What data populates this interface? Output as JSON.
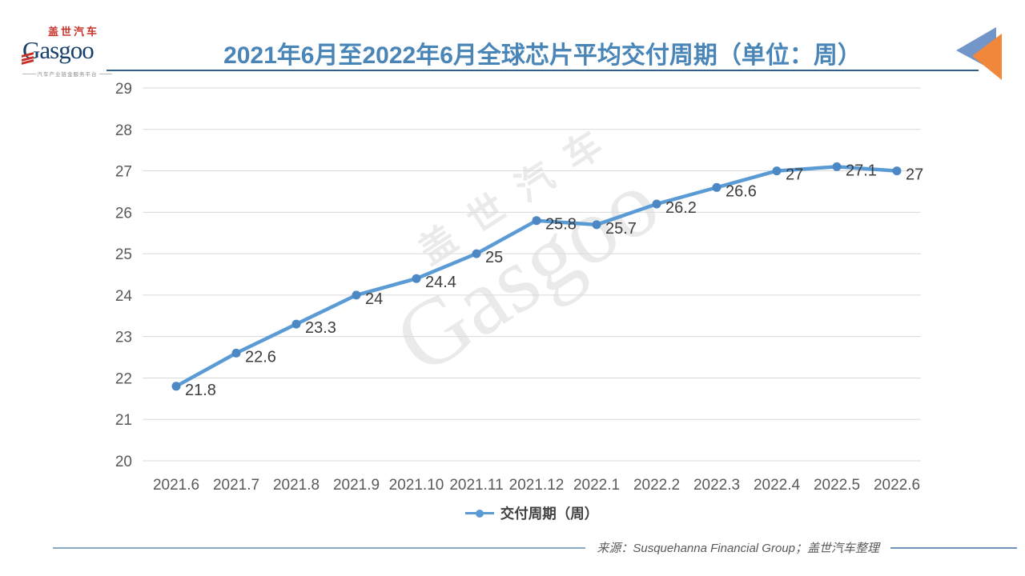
{
  "brand": {
    "logo_cn": "盖世汽车",
    "logo_en": "Gasgoo",
    "logo_tagline": "汽车产业链金服务平台",
    "watermark_cn": "盖世汽车",
    "watermark_en": "Gasgoo"
  },
  "header": {
    "title": "2021年6月至2022年6月全球芯片平均交付周期（单位：周）"
  },
  "legend": {
    "label": "交付周期（周）"
  },
  "footer": {
    "source": "来源：Susquehanna Financial Group；盖世汽车整理"
  },
  "colors": {
    "line": "#5B9BD5",
    "marker": "#4C88C4",
    "grid": "#D9D9D9",
    "title": "#4A85B8",
    "title_rule": "#2E5F8C",
    "deco_blue": "#7196C7",
    "deco_orange": "#F0873B"
  },
  "chart_data": {
    "type": "line",
    "title": "2021年6月至2022年6月全球芯片平均交付周期（单位：周）",
    "categories": [
      "2021.6",
      "2021.7",
      "2021.8",
      "2021.9",
      "2021.10",
      "2021.11",
      "2021.12",
      "2022.1",
      "2022.2",
      "2022.3",
      "2022.4",
      "2022.5",
      "2022.6"
    ],
    "series": [
      {
        "name": "交付周期（周）",
        "values": [
          21.8,
          22.6,
          23.3,
          24,
          24.4,
          25,
          25.8,
          25.7,
          26.2,
          26.6,
          27,
          27.1,
          27
        ],
        "labels": [
          "21.8",
          "22.6",
          "23.3",
          "24",
          "24.4",
          "25",
          "25.8",
          "25.7",
          "26.2",
          "26.6",
          "27",
          "27.1",
          "27"
        ]
      }
    ],
    "xlabel": "",
    "ylabel": "",
    "ylim": [
      20,
      29
    ],
    "ytick_step": 1,
    "grid": true,
    "legend_position": "bottom",
    "data_labels": true,
    "source": "来源：Susquehanna Financial Group；盖世汽车整理"
  }
}
